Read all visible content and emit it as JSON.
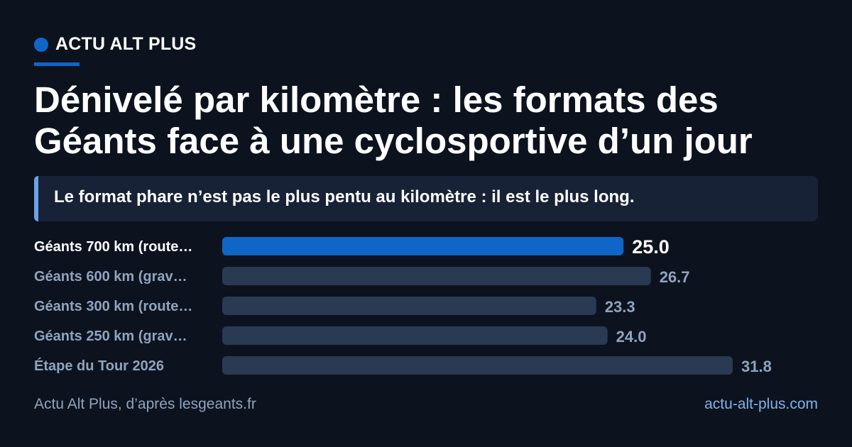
{
  "brand": {
    "name": "ACTU ALT PLUS"
  },
  "headline": {
    "title": "Dénivelé par kilomètre : les formats des Géants face à une cyclosportive d’un jour"
  },
  "subtitle": "Le format phare n’est pas le plus pentu au kilomètre : il est le plus long.",
  "footer": {
    "source": "Actu Alt Plus, d’après lesgeants.fr",
    "url": "actu-alt-plus.com"
  },
  "colors": {
    "accent": "#0f66c7",
    "accent_light": "#6aa3e6",
    "bar_muted": "#2a3a52",
    "label_muted": "#8fa3bd",
    "background": "#0c131f",
    "panel": "#172236"
  },
  "chart_data": {
    "type": "bar",
    "orientation": "horizontal",
    "categories": [
      "Géants 700 km (route…",
      "Géants 600 km (grav…",
      "Géants 300 km (route…",
      "Géants 250 km (grav…",
      "Étape du Tour 2026"
    ],
    "values": [
      25.0,
      26.7,
      23.3,
      24.0,
      31.8
    ],
    "value_labels": [
      "25.0",
      "26.7",
      "23.3",
      "24.0",
      "31.8"
    ],
    "highlight_index": 0,
    "xlim": [
      0,
      31.8
    ],
    "grid": false,
    "legend": "none"
  }
}
